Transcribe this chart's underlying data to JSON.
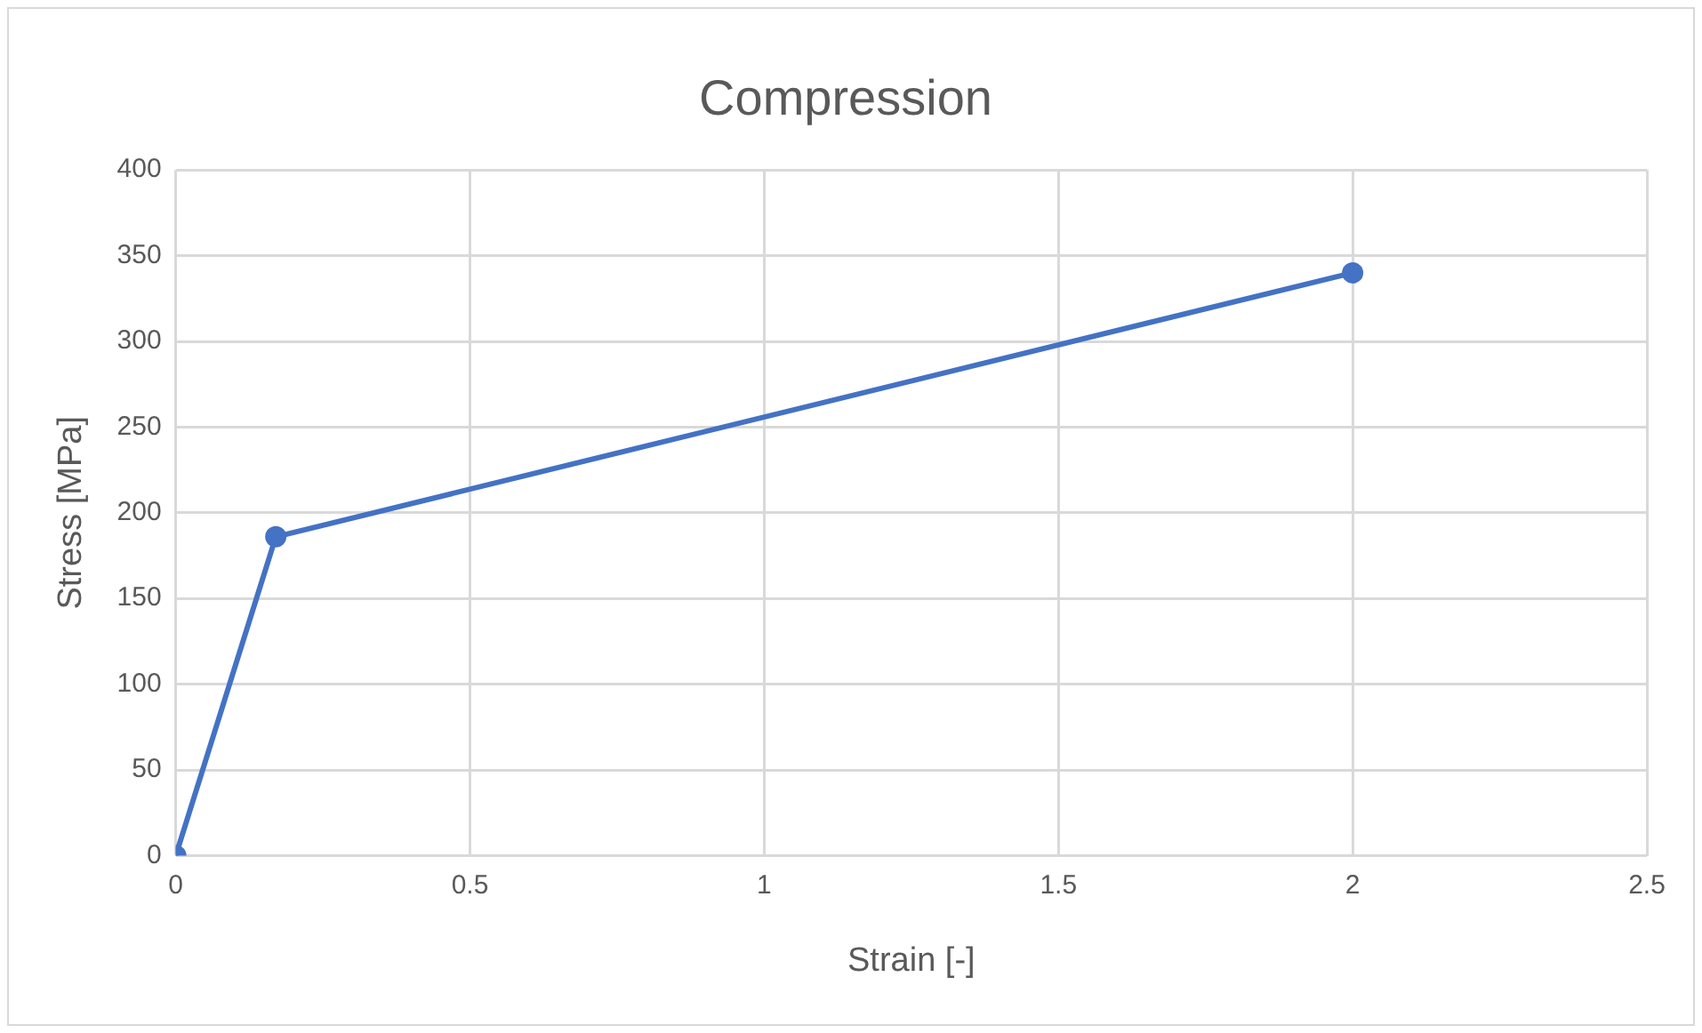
{
  "chart_data": {
    "type": "line",
    "title": "Compression",
    "xlabel": "Strain [-]",
    "ylabel": "Stress [MPa]",
    "x": [
      0,
      0.17,
      2
    ],
    "series": [
      {
        "color": "#4472c4",
        "values": [
          0,
          186,
          340
        ]
      }
    ],
    "xlim": [
      0,
      2.5
    ],
    "xticks": [
      0,
      0.5,
      1,
      1.5,
      2,
      2.5
    ],
    "ylim": [
      0,
      400
    ],
    "yticks": [
      0,
      50,
      100,
      150,
      200,
      250,
      300,
      350,
      400
    ],
    "grid": true,
    "marker": "circle",
    "line_style": "solid",
    "legend": false
  }
}
